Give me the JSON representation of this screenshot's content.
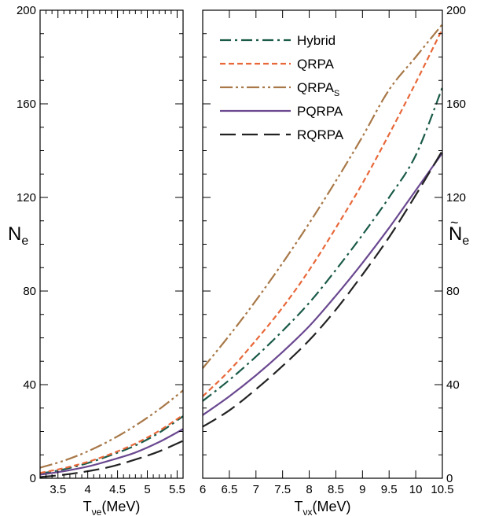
{
  "chart_data": [
    {
      "type": "line",
      "panel": "left",
      "xlabel": "T",
      "xlabel_sub": "νe",
      "xlabel_unit": "(MeV)",
      "ylabel": "N",
      "ylabel_sub": "e",
      "xlim": [
        3.2,
        5.6
      ],
      "ylim": [
        0,
        200
      ],
      "x_ticks": [
        3.5,
        4,
        4.5,
        5,
        5.5
      ],
      "x_tick_labels": [
        "3.5",
        "4",
        "4.5",
        "5",
        "5.5"
      ],
      "y_ticks": [
        0,
        40,
        80,
        120,
        160,
        200
      ],
      "y_tick_labels": [
        "0",
        "40",
        "80",
        "120",
        "160",
        "200"
      ],
      "x": [
        3.2,
        3.6,
        4.0,
        4.4,
        4.8,
        5.2,
        5.6
      ],
      "series": [
        {
          "key": "hybrid",
          "values": [
            2.0,
            3.8,
            6.5,
            10.0,
            14.0,
            19.5,
            26.5
          ],
          "color": "#1a5a48",
          "dash": "dashdot"
        },
        {
          "key": "qrpa",
          "values": [
            2.3,
            4.3,
            7.0,
            10.5,
            14.8,
            20.3,
            27.0
          ],
          "color": "#e8683a",
          "dash": "dash"
        },
        {
          "key": "qrpa_s",
          "values": [
            4.5,
            7.5,
            11.5,
            16.5,
            22.5,
            29.5,
            37.5
          ],
          "color": "#a87848",
          "dash": "dashdotdot"
        },
        {
          "key": "pqrpa",
          "values": [
            1.5,
            3.0,
            5.0,
            7.8,
            11.0,
            15.5,
            21.0
          ],
          "color": "#6a4890",
          "dash": "solid"
        },
        {
          "key": "rqrpa",
          "values": [
            0.5,
            1.5,
            3.0,
            5.0,
            8.0,
            11.5,
            16.0
          ],
          "color": "#222222",
          "dash": "longdash"
        }
      ]
    },
    {
      "type": "line",
      "panel": "right",
      "xlabel": "T",
      "xlabel_sub": "νx",
      "xlabel_unit": "(MeV)",
      "ylabel": "N",
      "ylabel_sub": "e",
      "ylabel_accent": "~",
      "xlim": [
        6,
        10.5
      ],
      "ylim": [
        0,
        200
      ],
      "x_ticks": [
        6,
        6.5,
        7,
        7.5,
        8,
        8.5,
        9,
        9.5,
        10,
        10.5
      ],
      "x_tick_labels": [
        "6",
        "6.5",
        "7",
        "7.5",
        "8",
        "8.5",
        "9",
        "9.5",
        "10",
        "10.5"
      ],
      "y_ticks": [
        0,
        40,
        80,
        120,
        160,
        200
      ],
      "y_tick_labels": [
        "0",
        "40",
        "80",
        "120",
        "160",
        "200"
      ],
      "legend_position": "top-left",
      "x": [
        6.0,
        6.5,
        7.0,
        7.5,
        8.0,
        8.5,
        9.0,
        9.5,
        10.0,
        10.5
      ],
      "series": [
        {
          "key": "hybrid",
          "name": "Hybrid",
          "values": [
            33,
            42,
            52,
            63,
            75,
            89,
            104,
            120,
            138,
            167
          ],
          "color": "#1a5a48",
          "dash": "dashdot"
        },
        {
          "key": "qrpa",
          "name": "QRPA",
          "values": [
            35,
            46,
            59,
            73,
            89,
            107,
            126,
            147,
            169,
            192
          ],
          "color": "#e8683a",
          "dash": "dash"
        },
        {
          "key": "qrpa_s",
          "name": "QRPA",
          "name_sub": "S",
          "values": [
            47,
            61,
            76,
            92,
            109,
            127,
            146,
            166,
            180,
            194
          ],
          "color": "#a87848",
          "dash": "dashdotdot"
        },
        {
          "key": "pqrpa",
          "name": "PQRPA",
          "values": [
            27,
            35,
            44,
            54,
            65,
            78,
            92,
            107,
            123,
            139
          ],
          "color": "#6a4890",
          "dash": "solid"
        },
        {
          "key": "rqrpa",
          "name": "RQRPA",
          "values": [
            22,
            29,
            38,
            48,
            59,
            72,
            87,
            103,
            121,
            140
          ],
          "color": "#222222",
          "dash": "longdash"
        }
      ]
    }
  ]
}
